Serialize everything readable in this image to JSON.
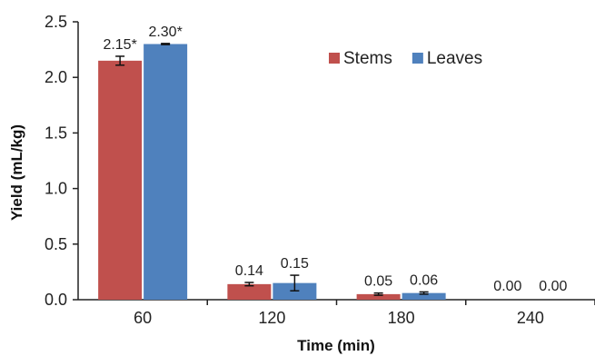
{
  "chart_data": {
    "type": "bar",
    "xlabel": "Time (min)",
    "ylabel": "Yield (mL/kg)",
    "ylim": [
      0,
      2.5
    ],
    "yticks": [
      "0.0",
      "0.5",
      "1.0",
      "1.5",
      "2.0",
      "2.5"
    ],
    "categories": [
      "60",
      "120",
      "180",
      "240"
    ],
    "grid": false,
    "legend_position": "top-right",
    "series": [
      {
        "name": "Stems",
        "color": "#c0504d",
        "values": [
          2.15,
          0.14,
          0.05,
          0.0
        ],
        "errors": [
          0.04,
          0.015,
          0.01,
          0.0
        ],
        "labels": [
          "2.15*",
          "0.14",
          "0.05",
          "0.00"
        ]
      },
      {
        "name": "Leaves",
        "color": "#4f81bd",
        "values": [
          2.3,
          0.15,
          0.06,
          0.0
        ],
        "errors": [
          0.005,
          0.07,
          0.01,
          0.0
        ],
        "labels": [
          "2.30*",
          "0.15",
          "0.06",
          "0.00"
        ]
      }
    ]
  }
}
